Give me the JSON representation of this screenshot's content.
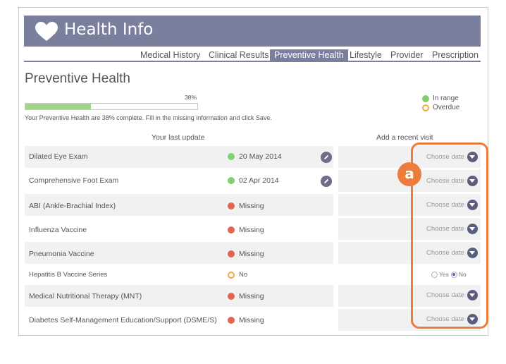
{
  "header": {
    "title": "Health Info"
  },
  "tabs": [
    {
      "label": "Medical History",
      "active": false
    },
    {
      "label": "Clinical Results",
      "active": false
    },
    {
      "label": "Preventive Health",
      "active": true
    },
    {
      "label": "Lifestyle",
      "active": false
    },
    {
      "label": "Provider",
      "active": false
    },
    {
      "label": "Prescription",
      "active": false
    }
  ],
  "page": {
    "title": "Preventive Health",
    "progress_label": "38%",
    "progress_value": 0.38,
    "progress_note": "Your Preventive Health are 38% complete. Fill in the missing information and click Save."
  },
  "legend": {
    "in_range": "In range",
    "overdue": "Overdue"
  },
  "columns": {
    "last_update": "Your last update",
    "add_visit": "Add a recent visit"
  },
  "rows": [
    {
      "name": "Dilated Eye Exam",
      "status": "20 May 2014",
      "kind": "green",
      "choose": "Choose date"
    },
    {
      "name": "Comprehensive Foot Exam",
      "status": "02 Apr 2014",
      "kind": "green",
      "choose": "Choose date"
    },
    {
      "name": "ABI (Ankle-Brachial Index)",
      "status": "Missing",
      "kind": "red",
      "choose": "Choose date"
    },
    {
      "name": "Influenza Vaccine",
      "status": "Missing",
      "kind": "red",
      "choose": "Choose date"
    },
    {
      "name": "Pneumonia Vaccine",
      "status": "Missing",
      "kind": "red",
      "choose": "Choose date"
    },
    {
      "name": "Hepatitis B Vaccine Series",
      "status": "No",
      "kind": "overdue",
      "choose": ""
    },
    {
      "name": "Medical Nutritional Therapy (MNT)",
      "status": "Missing",
      "kind": "red",
      "choose": "Choose date"
    },
    {
      "name": "Diabetes Self-Management Education/Support (DSME/S)",
      "status": "Missing",
      "kind": "red",
      "choose": "Choose date"
    }
  ],
  "radio": {
    "yes": "Yes",
    "no": "No",
    "selected": "No"
  },
  "callout": {
    "label": "a"
  },
  "colors": {
    "accent": "#7a7f9e",
    "green": "#7fd16e",
    "red": "#e0674b",
    "overdue": "#f0a93a",
    "callout": "#ec7b3c"
  }
}
